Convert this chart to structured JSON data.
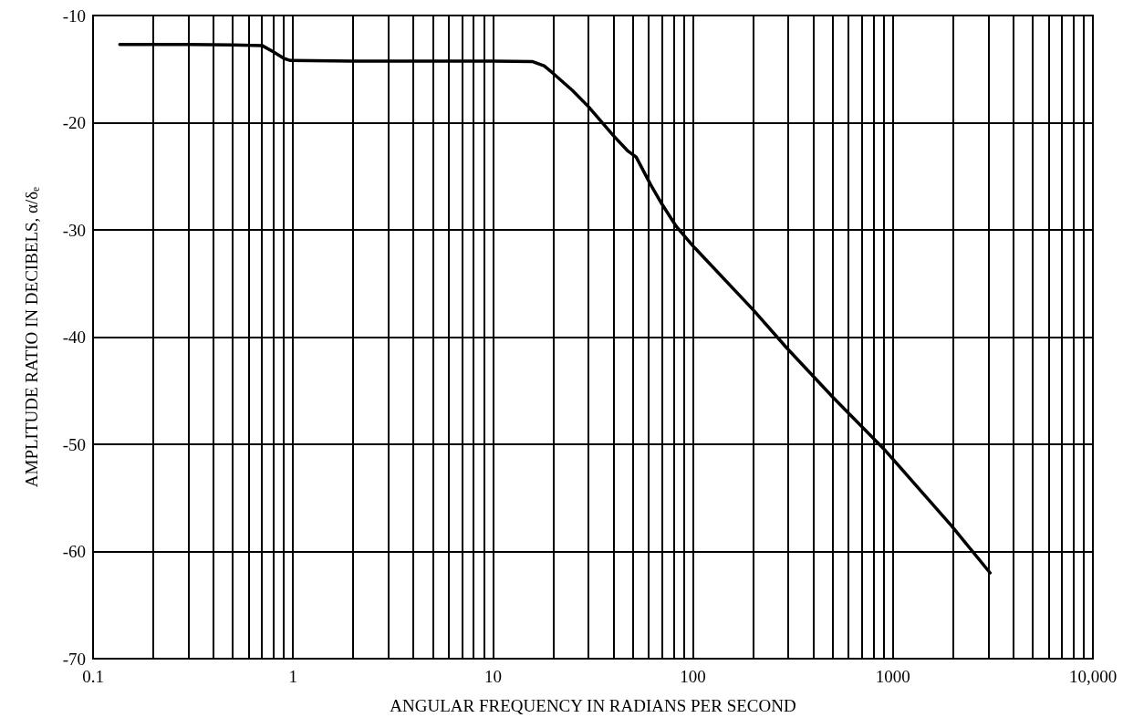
{
  "chart_data": {
    "type": "line",
    "xlabel": "ANGULAR FREQUENCY IN RADIANS PER SECOND",
    "ylabel": "AMPLITUDE RATIO IN DECIBELS, α/δₑ",
    "log": "x",
    "grid": true,
    "marker": "none",
    "line_style": "solid",
    "xlim": [
      0.1,
      10000
    ],
    "xticks": [
      0.1,
      1,
      10,
      100,
      1000,
      {
        "value": 10000,
        "label": "10,000"
      }
    ],
    "ylim": [
      -70,
      -10
    ],
    "yticks": [
      -70,
      -60,
      -50,
      -40,
      -30,
      -20,
      -10
    ],
    "series": [
      {
        "color": "#000000",
        "x": [
          0.136,
          0.3,
          0.5,
          0.7,
          0.8,
          0.9,
          0.97,
          2,
          5,
          10,
          15.8,
          18,
          20,
          25,
          30,
          40,
          47,
          52,
          61.5,
          70,
          82.7,
          100,
          201,
          294,
          500,
          918,
          1964,
          3062
        ],
        "values": [
          -12.7,
          -12.7,
          -12.75,
          -12.8,
          -13.4,
          -14.0,
          -14.2,
          -14.25,
          -14.25,
          -14.25,
          -14.3,
          -14.7,
          -15.4,
          -17.0,
          -18.5,
          -21.2,
          -22.6,
          -23.2,
          -25.8,
          -27.6,
          -29.7,
          -31.5,
          -37.5,
          -41.0,
          -45.6,
          -50.6,
          -57.6,
          -62.0
        ]
      }
    ]
  }
}
